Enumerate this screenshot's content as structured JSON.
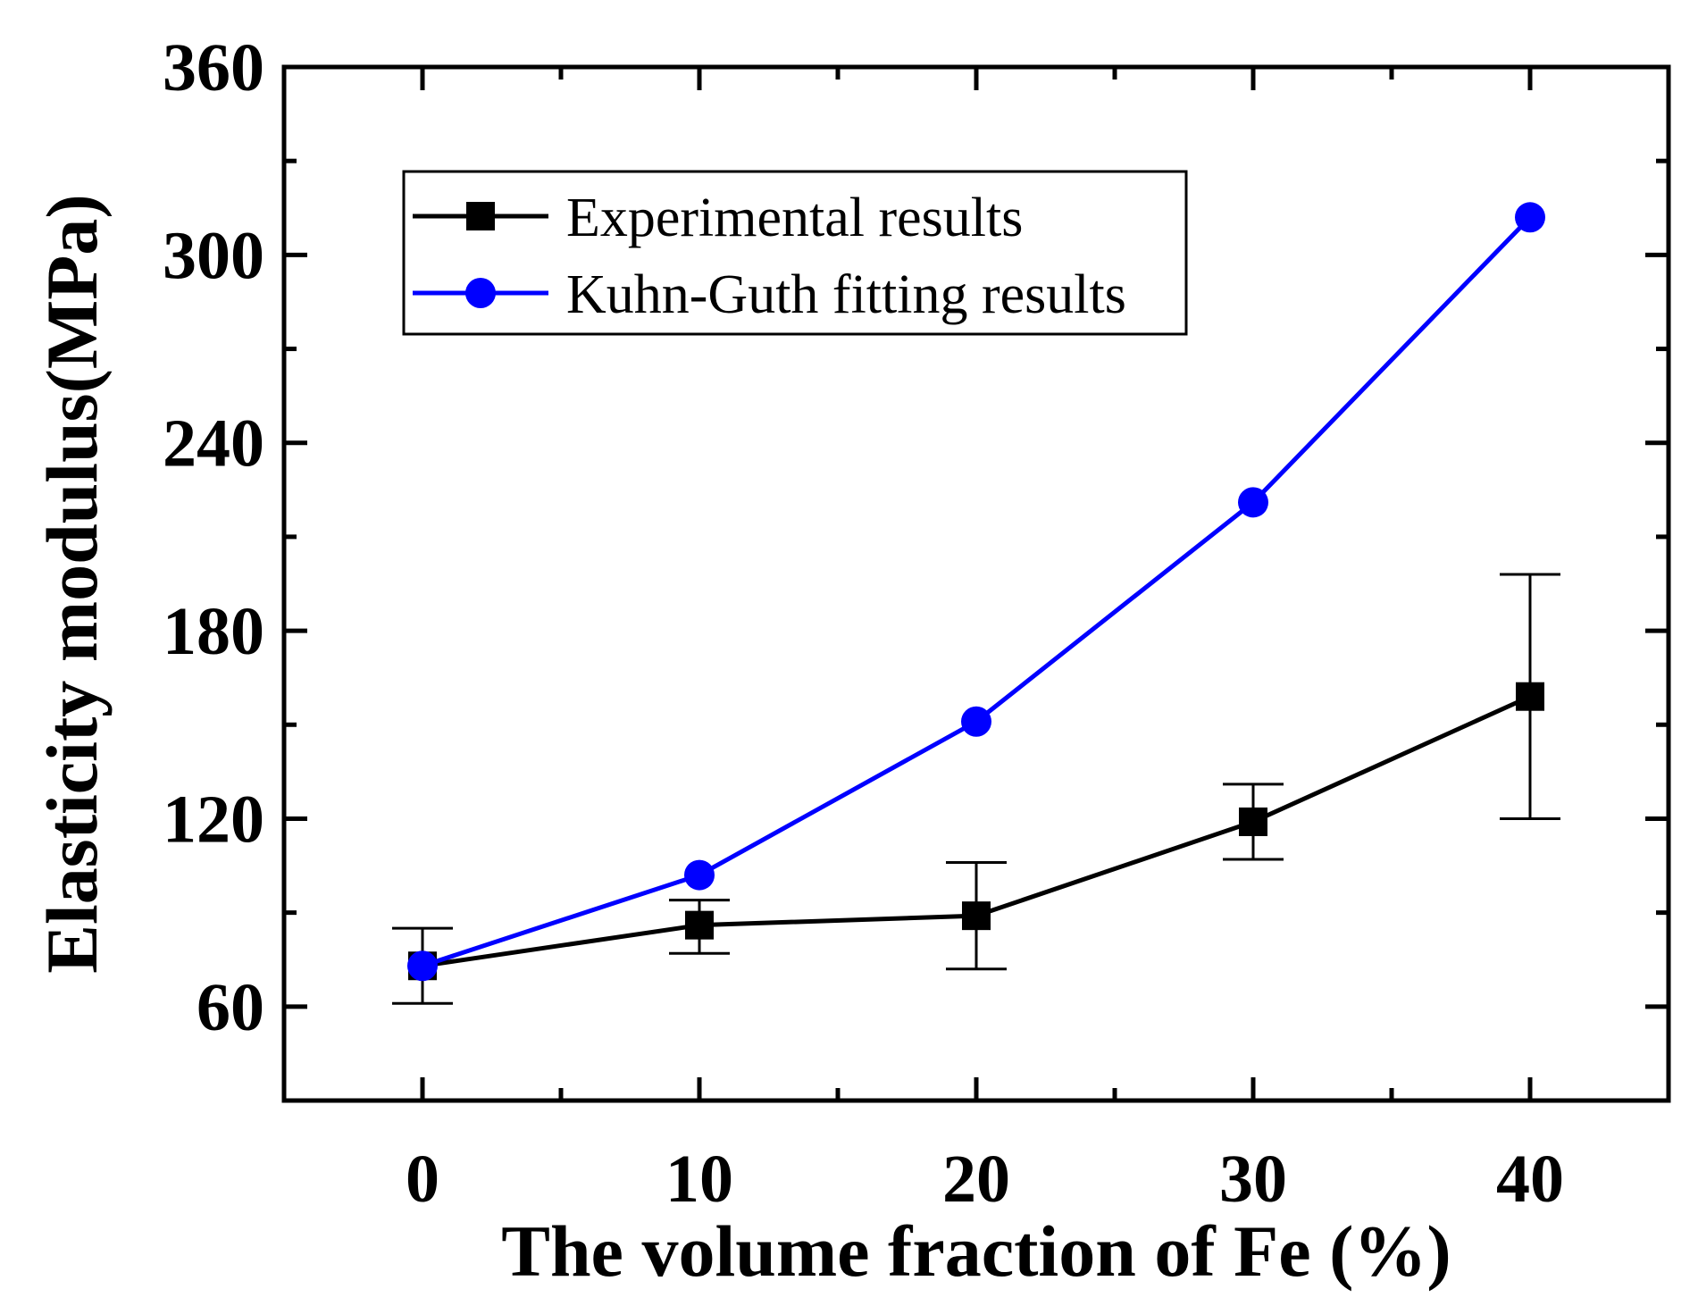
{
  "chart_data": {
    "type": "line",
    "title": "",
    "xlabel": "The volume fraction of Fe (%)",
    "ylabel": "Elasticity modulus(MPa)",
    "xlim": [
      -5,
      45
    ],
    "ylim": [
      30,
      360
    ],
    "x_major_ticks": [
      0,
      10,
      20,
      30,
      40
    ],
    "x_minor_ticks": [
      -5,
      5,
      15,
      25,
      35,
      45
    ],
    "y_major_ticks": [
      60,
      120,
      180,
      240,
      300,
      360
    ],
    "y_minor_ticks": [
      30,
      90,
      150,
      210,
      270,
      330
    ],
    "x_tick_labels": [
      "0",
      "10",
      "20",
      "30",
      "40"
    ],
    "y_tick_labels": [
      "60",
      "120",
      "180",
      "240",
      "300",
      "360"
    ],
    "grid": false,
    "legend_position": "top-left",
    "series": [
      {
        "name": "Experimental results",
        "color": "#000000",
        "marker": "square",
        "x": [
          0,
          10,
          20,
          30,
          40
        ],
        "y": [
          73,
          86,
          89,
          119,
          159
        ],
        "error_low": [
          61,
          77,
          72,
          107,
          120
        ],
        "error_high": [
          85,
          94,
          106,
          131,
          198
        ]
      },
      {
        "name": "Kuhn-Guth fitting results",
        "color": "#0000ff",
        "marker": "circle",
        "x": [
          0,
          10,
          20,
          30,
          40
        ],
        "y": [
          73,
          102,
          151,
          221,
          312
        ]
      }
    ]
  }
}
